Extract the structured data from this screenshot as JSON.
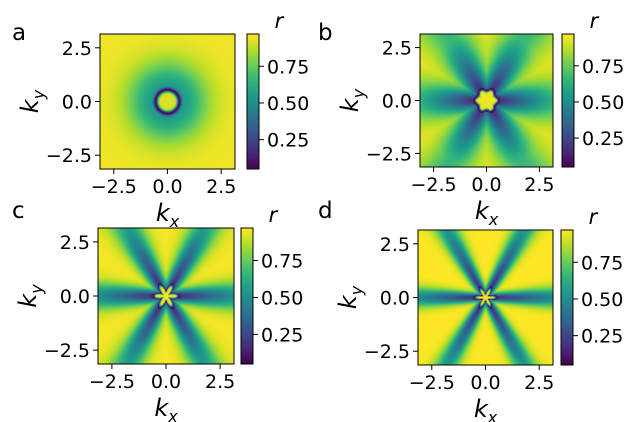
{
  "colormap": {
    "name": "viridis",
    "stops": [
      "#440154",
      "#482878",
      "#3e4989",
      "#31688e",
      "#26828e",
      "#1f9e89",
      "#35b779",
      "#6ece58",
      "#b5de2b",
      "#fde725"
    ]
  },
  "chart_data": [
    {
      "type": "heatmap",
      "panel_label": "a",
      "x": {
        "symbol": "k",
        "subscript": "x",
        "lim": [
          -3.14159,
          3.14159
        ],
        "ticks": [
          -2.5,
          0.0,
          2.5
        ],
        "tick_labels": [
          "−2.5",
          "0.0",
          "2.5"
        ]
      },
      "y": {
        "symbol": "k",
        "subscript": "y",
        "lim": [
          -3.14159,
          3.14159
        ],
        "ticks": [
          2.5,
          0.0,
          -2.5
        ],
        "tick_labels": [
          "2.5",
          "0.0",
          "−2.5"
        ]
      },
      "colorbar": {
        "label": "r",
        "range": [
          0.05,
          0.97
        ],
        "ticks": [
          0.75,
          0.5,
          0.25
        ],
        "tick_labels": [
          "0.75",
          "0.50",
          "0.25"
        ]
      },
      "pattern": {
        "ring_radius": 0.55,
        "ring_width": 0.1,
        "min_value": 0.05,
        "center_value": 0.92,
        "outer_value": 0.95,
        "star_arms": 0,
        "star_amplitude": 0.0,
        "arm_reach": 0.0,
        "arm_width": 0.0
      }
    },
    {
      "type": "heatmap",
      "panel_label": "b",
      "x": {
        "symbol": "k",
        "subscript": "x",
        "lim": [
          -3.14159,
          3.14159
        ],
        "ticks": [
          -2.5,
          0.0,
          2.5
        ],
        "tick_labels": [
          "−2.5",
          "0.0",
          "2.5"
        ]
      },
      "y": {
        "symbol": "k",
        "subscript": "y",
        "lim": [
          -3.14159,
          3.14159
        ],
        "ticks": [
          2.5,
          0.0,
          -2.5
        ],
        "tick_labels": [
          "2.5",
          "0.0",
          "−2.5"
        ]
      },
      "colorbar": {
        "label": "r",
        "range": [
          0.05,
          0.97
        ],
        "ticks": [
          0.75,
          0.5,
          0.25
        ],
        "tick_labels": [
          "0.75",
          "0.50",
          "0.25"
        ]
      },
      "pattern": {
        "ring_radius": 0.55,
        "ring_width": 0.09,
        "min_value": 0.05,
        "center_value": 0.95,
        "outer_value": 0.95,
        "star_arms": 6,
        "star_amplitude": 0.12,
        "arm_reach": 2.8,
        "arm_width": 0.35
      }
    },
    {
      "type": "heatmap",
      "panel_label": "c",
      "x": {
        "symbol": "k",
        "subscript": "x",
        "lim": [
          -3.14159,
          3.14159
        ],
        "ticks": [
          -2.5,
          0.0,
          2.5
        ],
        "tick_labels": [
          "−2.5",
          "0.0",
          "2.5"
        ]
      },
      "y": {
        "symbol": "k",
        "subscript": "y",
        "lim": [
          -3.14159,
          3.14159
        ],
        "ticks": [
          2.5,
          0.0,
          -2.5
        ],
        "tick_labels": [
          "2.5",
          "0.0",
          "−2.5"
        ]
      },
      "colorbar": {
        "label": "r",
        "range": [
          0.05,
          0.97
        ],
        "ticks": [
          0.75,
          0.5,
          0.25
        ],
        "tick_labels": [
          "0.75",
          "0.50",
          "0.25"
        ]
      },
      "pattern": {
        "ring_radius": 0.45,
        "ring_width": 0.12,
        "min_value": 0.05,
        "center_value": 0.95,
        "outer_value": 0.96,
        "star_arms": 6,
        "star_amplitude": 0.45,
        "arm_reach": 4.0,
        "arm_width": 0.22
      }
    },
    {
      "type": "heatmap",
      "panel_label": "d",
      "x": {
        "symbol": "k",
        "subscript": "x",
        "lim": [
          -3.14159,
          3.14159
        ],
        "ticks": [
          -2.5,
          0.0,
          2.5
        ],
        "tick_labels": [
          "−2.5",
          "0.0",
          "2.5"
        ]
      },
      "y": {
        "symbol": "k",
        "subscript": "y",
        "lim": [
          -3.14159,
          3.14159
        ],
        "ticks": [
          2.5,
          0.0,
          -2.5
        ],
        "tick_labels": [
          "2.5",
          "0.0",
          "−2.5"
        ]
      },
      "colorbar": {
        "label": "r",
        "range": [
          0.05,
          0.97
        ],
        "ticks": [
          0.75,
          0.5,
          0.25
        ],
        "tick_labels": [
          "0.75",
          "0.50",
          "0.25"
        ]
      },
      "pattern": {
        "ring_radius": 0.35,
        "ring_width": 0.12,
        "min_value": 0.05,
        "center_value": 0.95,
        "outer_value": 0.97,
        "star_arms": 6,
        "star_amplitude": 0.6,
        "arm_reach": 4.5,
        "arm_width": 0.16
      }
    }
  ]
}
